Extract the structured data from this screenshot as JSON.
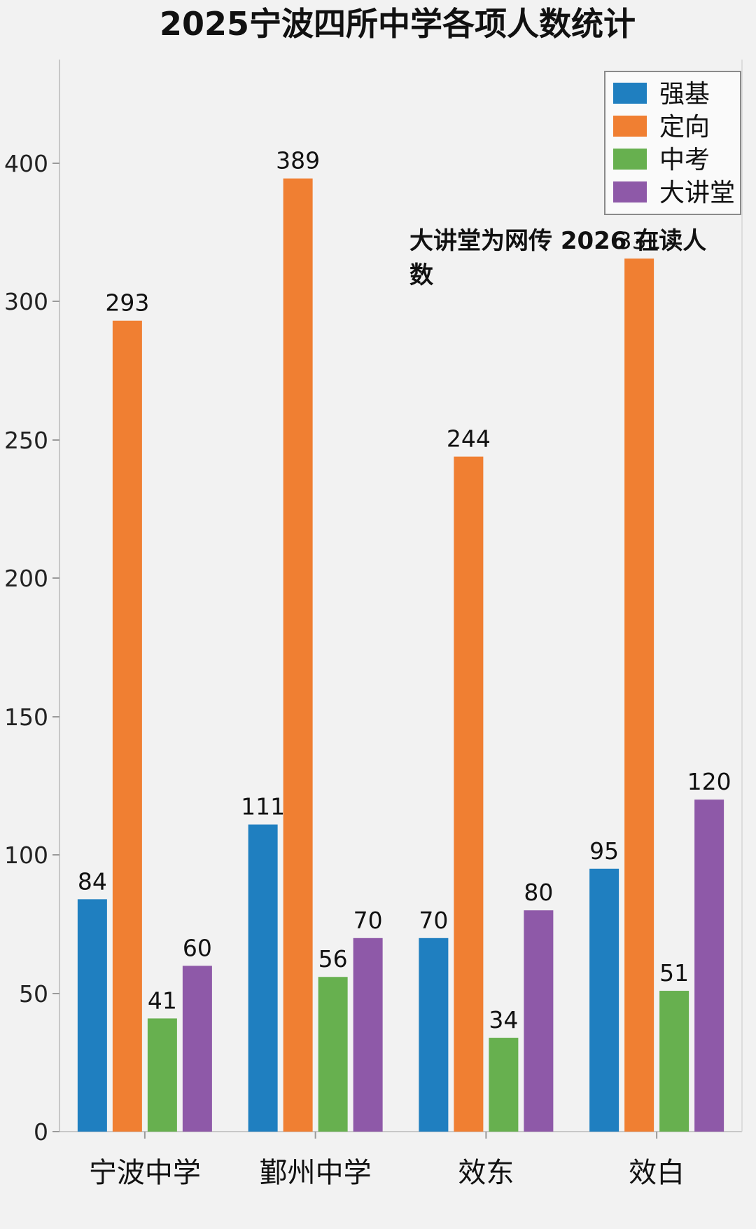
{
  "chart_data": {
    "type": "bar",
    "title": "2025宁波四所中学各项人数统计",
    "categories": [
      "宁波中学",
      "鄞州中学",
      "效东",
      "效白"
    ],
    "series": [
      {
        "name": "强基",
        "color": "#1f7fc0",
        "values": [
          84,
          111,
          70,
          95
        ]
      },
      {
        "name": "定向",
        "color": "#f07f32",
        "values": [
          293,
          389,
          244,
          331
        ]
      },
      {
        "name": "中考",
        "color": "#67b04f",
        "values": [
          41,
          56,
          34,
          51
        ]
      },
      {
        "name": "大讲堂",
        "color": "#8e59a8",
        "values": [
          60,
          70,
          80,
          120
        ]
      }
    ],
    "yticks": [
      0,
      50,
      100,
      150,
      200,
      250,
      300,
      400
    ],
    "ylim": [
      0,
      400
    ],
    "grid": false,
    "legend_position": "top-right",
    "annotation": {
      "lines": [
        "大讲堂为网传 2026 在读人",
        "数"
      ]
    }
  }
}
